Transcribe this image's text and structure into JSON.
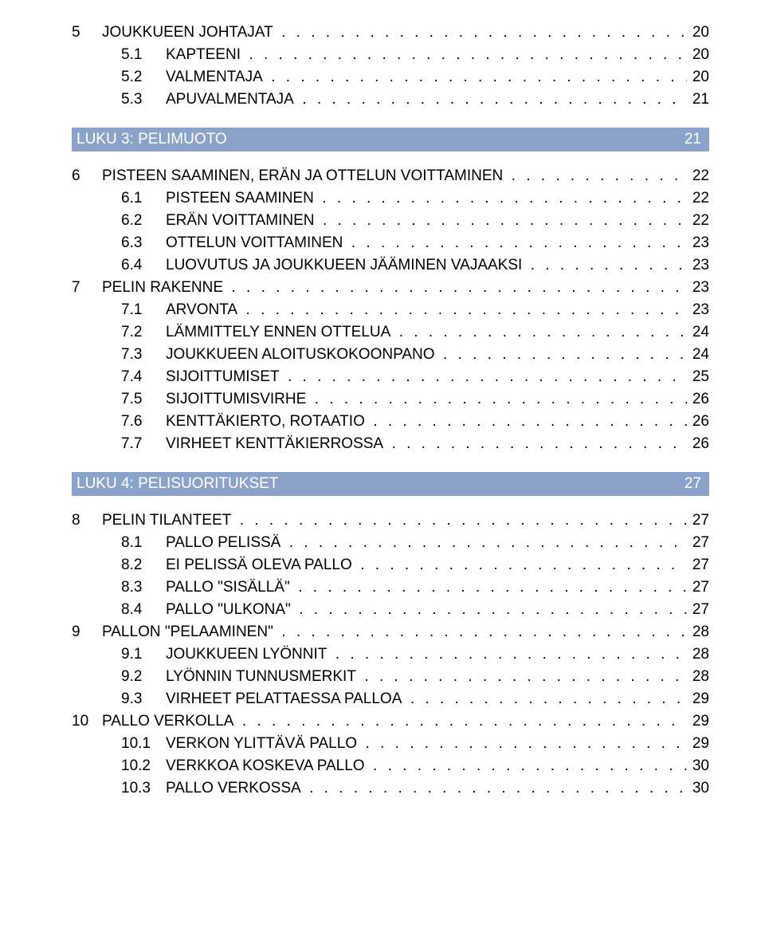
{
  "colors": {
    "chapter_bar_bg": "#8ca3c9",
    "chapter_bar_text": "#ffffff",
    "text": "#000000",
    "page_bg": "#ffffff"
  },
  "typography": {
    "base_fontsize_pt": 14,
    "font_family": "Arial"
  },
  "pre_sections": [
    {
      "num": "5",
      "label": "JOUKKUEEN JOHTAJAT",
      "page": "20",
      "subs": [
        {
          "num": "5.1",
          "label": "KAPTEENI",
          "page": "20"
        },
        {
          "num": "5.2",
          "label": "VALMENTAJA",
          "page": "20"
        },
        {
          "num": "5.3",
          "label": "APUVALMENTAJA",
          "page": "21"
        }
      ]
    }
  ],
  "chapters": [
    {
      "title": "LUKU 3: PELIMUOTO",
      "page": "21",
      "sections": [
        {
          "num": "6",
          "label": "PISTEEN SAAMINEN, ERÄN JA OTTELUN VOITTAMINEN",
          "page": "22",
          "subs": [
            {
              "num": "6.1",
              "label": "PISTEEN SAAMINEN",
              "page": "22"
            },
            {
              "num": "6.2",
              "label": "ERÄN VOITTAMINEN",
              "page": "22"
            },
            {
              "num": "6.3",
              "label": "OTTELUN VOITTAMINEN",
              "page": "23"
            },
            {
              "num": "6.4",
              "label": "LUOVUTUS JA JOUKKUEEN JÄÄMINEN VAJAAKSI",
              "page": "23"
            }
          ]
        },
        {
          "num": "7",
          "label": "PELIN RAKENNE",
          "page": "23",
          "subs": [
            {
              "num": "7.1",
              "label": "ARVONTA",
              "page": "23"
            },
            {
              "num": "7.2",
              "label": "LÄMMITTELY ENNEN OTTELUA",
              "page": "24"
            },
            {
              "num": "7.3",
              "label": "JOUKKUEEN ALOITUSKOKOONPANO",
              "page": "24"
            },
            {
              "num": "7.4",
              "label": "SIJOITTUMISET",
              "page": "25"
            },
            {
              "num": "7.5",
              "label": "SIJOITTUMISVIRHE",
              "page": "26"
            },
            {
              "num": "7.6",
              "label": "KENTTÄKIERTO, ROTAATIO",
              "page": "26"
            },
            {
              "num": "7.7",
              "label": "VIRHEET KENTTÄKIERROSSA",
              "page": "26"
            }
          ]
        }
      ]
    },
    {
      "title": "LUKU 4: PELISUORITUKSET",
      "page": "27",
      "sections": [
        {
          "num": "8",
          "label": "PELIN TILANTEET",
          "page": "27",
          "subs": [
            {
              "num": "8.1",
              "label": "PALLO PELISSÄ",
              "page": "27"
            },
            {
              "num": "8.2",
              "label": "EI PELISSÄ OLEVA PALLO",
              "page": "27"
            },
            {
              "num": "8.3",
              "label": "PALLO \"SISÄLLÄ\"",
              "page": "27"
            },
            {
              "num": "8.4",
              "label": "PALLO \"ULKONA\"",
              "page": "27"
            }
          ]
        },
        {
          "num": "9",
          "label": "PALLON \"PELAAMINEN\"",
          "page": "28",
          "subs": [
            {
              "num": "9.1",
              "label": "JOUKKUEEN LYÖNNIT",
              "page": "28"
            },
            {
              "num": "9.2",
              "label": "LYÖNNIN TUNNUSMERKIT",
              "page": "28"
            },
            {
              "num": "9.3",
              "label": "VIRHEET PELATTAESSA PALLOA",
              "page": "29"
            }
          ]
        },
        {
          "num": "10",
          "label": "PALLO VERKOLLA",
          "page": "29",
          "subs": [
            {
              "num": "10.1",
              "label": "VERKON YLITTÄVÄ PALLO",
              "page": "29"
            },
            {
              "num": "10.2",
              "label": "VERKKOA KOSKEVA PALLO",
              "page": "30"
            },
            {
              "num": "10.3",
              "label": "PALLO VERKOSSA",
              "page": "30"
            }
          ]
        }
      ]
    }
  ]
}
